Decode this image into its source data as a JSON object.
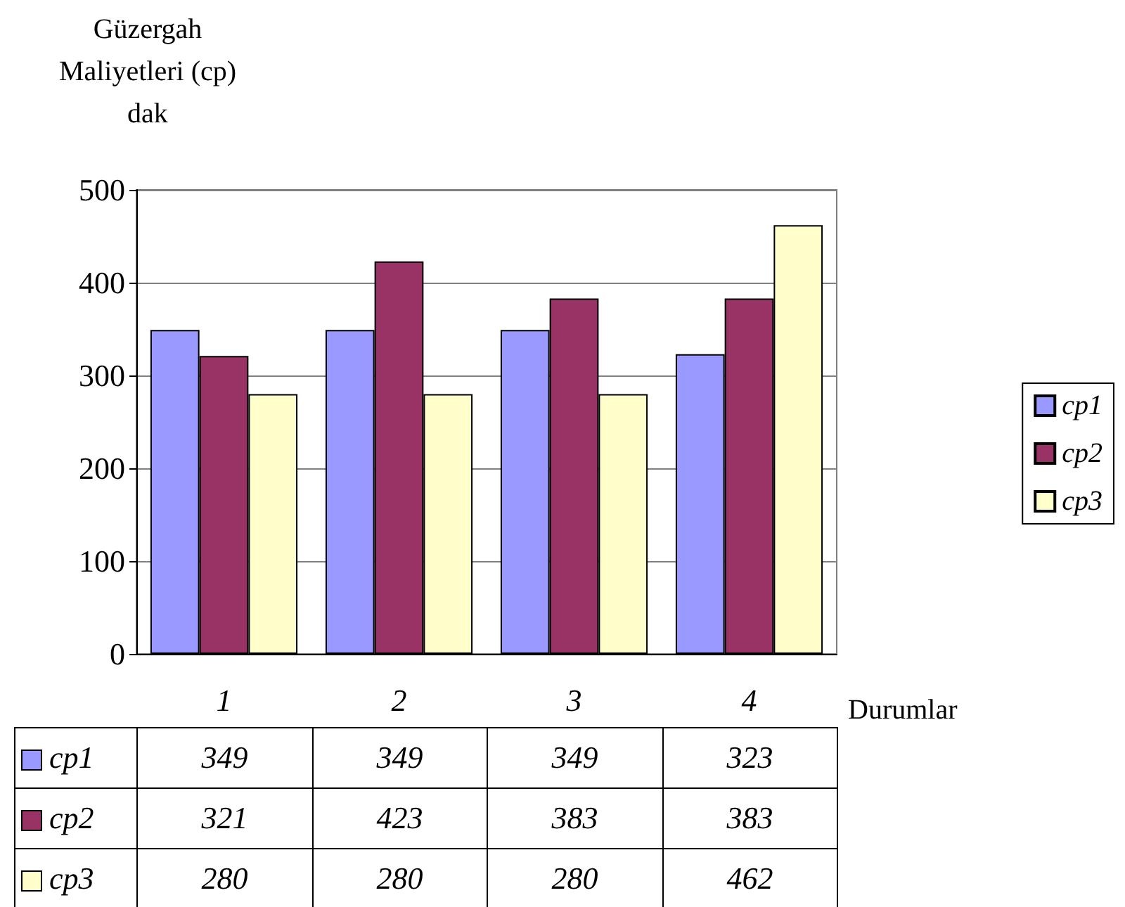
{
  "chart_data": {
    "type": "bar",
    "ylabel": "Güzergah Maliyetleri (cp) dak",
    "xlabel": "Durumlar",
    "categories": [
      "1",
      "2",
      "3",
      "4"
    ],
    "series": [
      {
        "name": "cp1",
        "color": "#9999ff",
        "values": [
          349,
          349,
          349,
          323
        ]
      },
      {
        "name": "cp2",
        "color": "#993366",
        "values": [
          321,
          423,
          383,
          383
        ]
      },
      {
        "name": "cp3",
        "color": "#ffffcc",
        "values": [
          280,
          280,
          280,
          462
        ]
      }
    ],
    "ylim": [
      0,
      500
    ],
    "yticks": [
      0,
      100,
      200,
      300,
      400,
      500
    ],
    "grid": "y",
    "legend": "right",
    "data_labels": true
  }
}
